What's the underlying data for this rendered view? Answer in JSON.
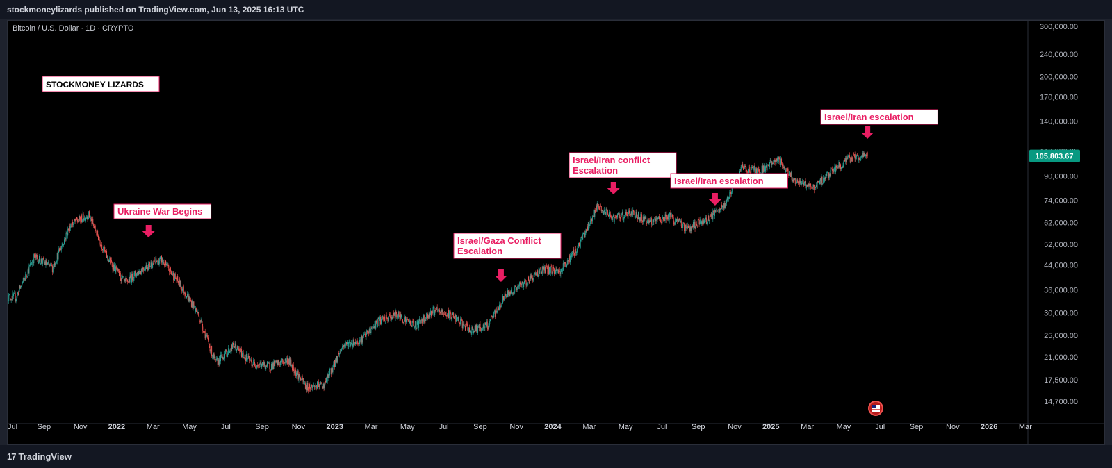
{
  "header": {
    "published": "stockmoneylizards published on TradingView.com, Jun 13, 2025 16:13 UTC"
  },
  "symbol_line": "Bitcoin / U.S. Dollar · 1D · CRYPTO",
  "watermark_label": "STOCKMONEY LIZARDS",
  "footer": {
    "logo_mark": "17",
    "logo_text": "TradingView"
  },
  "colors": {
    "up": "#26a69a",
    "down": "#ef5350",
    "annotation": "#e91e63",
    "price_badge": "#089981"
  },
  "chart_data": {
    "type": "candlestick",
    "scale": "log",
    "ylim": [
      13000,
      300000
    ],
    "y_ticks": [
      {
        "value": 300000,
        "label": "300,000.00"
      },
      {
        "value": 240000,
        "label": "240,000.00"
      },
      {
        "value": 200000,
        "label": "200,000.00"
      },
      {
        "value": 170000,
        "label": "170,000.00"
      },
      {
        "value": 140000,
        "label": "140,000.00"
      },
      {
        "value": 110000,
        "label": "110,000.00"
      },
      {
        "value": 90000,
        "label": "90,000.00"
      },
      {
        "value": 74000,
        "label": "74,000.00"
      },
      {
        "value": 62000,
        "label": "62,000.00"
      },
      {
        "value": 52000,
        "label": "52,000.00"
      },
      {
        "value": 44000,
        "label": "44,000.00"
      },
      {
        "value": 36000,
        "label": "36,000.00"
      },
      {
        "value": 30000,
        "label": "30,000.00"
      },
      {
        "value": 25000,
        "label": "25,000.00"
      },
      {
        "value": 21000,
        "label": "21,000.00"
      },
      {
        "value": 17500,
        "label": "17,500.00"
      },
      {
        "value": 14700,
        "label": "14,700.00"
      }
    ],
    "x_ticks": [
      "Jul",
      "Sep",
      "Nov",
      "2022",
      "Mar",
      "May",
      "Jul",
      "Sep",
      "Nov",
      "2023",
      "Mar",
      "May",
      "Jul",
      "Sep",
      "Nov",
      "2024",
      "Mar",
      "May",
      "Jul",
      "Sep",
      "Nov",
      "2025",
      "Mar",
      "May",
      "Jul",
      "Sep",
      "Nov",
      "2026",
      "Mar"
    ],
    "last_price": {
      "value": 105803.67,
      "label": "105,803.67"
    },
    "price_path": [
      {
        "date": "2021-07",
        "price": 34000
      },
      {
        "date": "2021-08",
        "price": 47000
      },
      {
        "date": "2021-09",
        "price": 43000
      },
      {
        "date": "2021-10",
        "price": 61000
      },
      {
        "date": "2021-11",
        "price": 66000
      },
      {
        "date": "2021-12",
        "price": 47000
      },
      {
        "date": "2022-01",
        "price": 38000
      },
      {
        "date": "2022-02",
        "price": 43000
      },
      {
        "date": "2022-03",
        "price": 46000
      },
      {
        "date": "2022-04",
        "price": 38000
      },
      {
        "date": "2022-05",
        "price": 30000
      },
      {
        "date": "2022-06",
        "price": 20000
      },
      {
        "date": "2022-07",
        "price": 23000
      },
      {
        "date": "2022-08",
        "price": 20000
      },
      {
        "date": "2022-09",
        "price": 19500
      },
      {
        "date": "2022-10",
        "price": 20500
      },
      {
        "date": "2022-11",
        "price": 16500
      },
      {
        "date": "2022-12",
        "price": 16800
      },
      {
        "date": "2023-01",
        "price": 23000
      },
      {
        "date": "2023-02",
        "price": 24000
      },
      {
        "date": "2023-03",
        "price": 28000
      },
      {
        "date": "2023-04",
        "price": 29500
      },
      {
        "date": "2023-05",
        "price": 27000
      },
      {
        "date": "2023-06",
        "price": 30500
      },
      {
        "date": "2023-07",
        "price": 29500
      },
      {
        "date": "2023-08",
        "price": 26000
      },
      {
        "date": "2023-09",
        "price": 27000
      },
      {
        "date": "2023-10",
        "price": 34500
      },
      {
        "date": "2023-11",
        "price": 38000
      },
      {
        "date": "2023-12",
        "price": 42500
      },
      {
        "date": "2024-01",
        "price": 42000
      },
      {
        "date": "2024-02",
        "price": 51000
      },
      {
        "date": "2024-03",
        "price": 70000
      },
      {
        "date": "2024-04",
        "price": 64000
      },
      {
        "date": "2024-05",
        "price": 67000
      },
      {
        "date": "2024-06",
        "price": 62000
      },
      {
        "date": "2024-07",
        "price": 65000
      },
      {
        "date": "2024-08",
        "price": 59000
      },
      {
        "date": "2024-09",
        "price": 63000
      },
      {
        "date": "2024-10",
        "price": 70000
      },
      {
        "date": "2024-11",
        "price": 96000
      },
      {
        "date": "2024-12",
        "price": 94000
      },
      {
        "date": "2025-01",
        "price": 103000
      },
      {
        "date": "2025-02",
        "price": 86000
      },
      {
        "date": "2025-03",
        "price": 82000
      },
      {
        "date": "2025-04",
        "price": 94000
      },
      {
        "date": "2025-05",
        "price": 104000
      },
      {
        "date": "2025-06",
        "price": 105800
      }
    ],
    "annotations": [
      {
        "text": [
          "Ukraine War Begins"
        ],
        "date": "2022-02-24",
        "price": 45000
      },
      {
        "text": [
          "Israel/Gaza Conflict",
          "Escalation"
        ],
        "date": "2023-10-07",
        "price": 38000
      },
      {
        "text": [
          "Israel/Iran conflict",
          "Escalation"
        ],
        "date": "2024-04-13",
        "price": 72000
      },
      {
        "text": [
          "Israel/Iran escalation"
        ],
        "date": "2024-10-01",
        "price": 66000
      },
      {
        "text": [
          "Israel/Iran escalation"
        ],
        "date": "2025-06-13",
        "price": 108000
      }
    ]
  }
}
